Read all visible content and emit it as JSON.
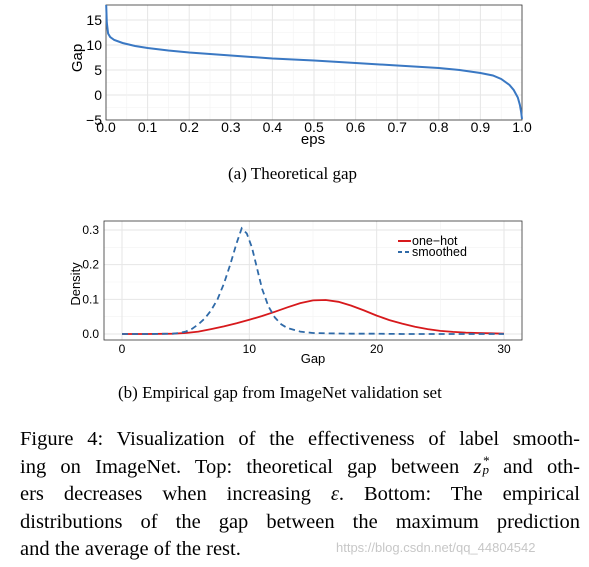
{
  "colors": {
    "top_line": "#3a78c3",
    "one_hot": "#d7191c",
    "smoothed": "#2f6aa8",
    "grid": "#e6e6e6",
    "panel_border": "#333333"
  },
  "chart_data": [
    {
      "type": "line",
      "title": "",
      "xlabel": "eps",
      "ylabel": "Gap",
      "xlim": [
        0.0,
        1.0
      ],
      "ylim": [
        -5,
        18
      ],
      "xticks": [
        "0.0",
        "0.1",
        "0.2",
        "0.3",
        "0.4",
        "0.5",
        "0.6",
        "0.7",
        "0.8",
        "0.9",
        "1.0"
      ],
      "yticks": [
        "−5",
        "0",
        "5",
        "10",
        "15"
      ],
      "grid": true,
      "series": [
        {
          "name": "",
          "x": [
            0.0005,
            0.002,
            0.005,
            0.01,
            0.02,
            0.04,
            0.07,
            0.1,
            0.15,
            0.2,
            0.3,
            0.4,
            0.5,
            0.6,
            0.7,
            0.8,
            0.85,
            0.9,
            0.93,
            0.95,
            0.97,
            0.98,
            0.99,
            0.995,
            0.998,
            1.0
          ],
          "y": [
            18.0,
            14.5,
            12.3,
            11.6,
            11.0,
            10.4,
            9.8,
            9.4,
            8.9,
            8.5,
            7.9,
            7.3,
            6.9,
            6.4,
            5.9,
            5.4,
            5.0,
            4.4,
            3.9,
            3.2,
            2.0,
            1.0,
            -0.5,
            -2.0,
            -3.5,
            -4.8
          ]
        }
      ]
    },
    {
      "type": "line",
      "title": "",
      "xlabel": "Gap",
      "ylabel": "Density",
      "xlim": [
        0,
        30
      ],
      "ylim": [
        0,
        0.3
      ],
      "xticks": [
        "0",
        "10",
        "20",
        "30"
      ],
      "yticks": [
        "0.0",
        "0.1",
        "0.2",
        "0.3"
      ],
      "grid": true,
      "legend": "top-right",
      "series": [
        {
          "name": "one−hot",
          "x": [
            0,
            2,
            4,
            5,
            6,
            7,
            8,
            9,
            10,
            11,
            12,
            13,
            14,
            15,
            16,
            17,
            18,
            19,
            20,
            21,
            22,
            23,
            24,
            25,
            26,
            27,
            28,
            29,
            30
          ],
          "y": [
            0.0,
            0.0,
            0.001,
            0.003,
            0.007,
            0.014,
            0.022,
            0.031,
            0.041,
            0.052,
            0.064,
            0.077,
            0.089,
            0.097,
            0.098,
            0.093,
            0.082,
            0.068,
            0.053,
            0.04,
            0.03,
            0.021,
            0.014,
            0.009,
            0.006,
            0.004,
            0.003,
            0.002,
            0.001
          ]
        },
        {
          "name": "smoothed",
          "x": [
            0,
            2,
            4,
            4.5,
            5,
            5.5,
            6,
            6.5,
            7,
            7.5,
            8,
            8.5,
            9,
            9.4,
            9.8,
            10.2,
            10.6,
            11,
            11.5,
            12,
            12.5,
            13,
            14,
            15,
            16,
            18,
            20,
            22,
            25,
            30
          ],
          "y": [
            0.0,
            0.0,
            0.001,
            0.003,
            0.007,
            0.015,
            0.028,
            0.045,
            0.068,
            0.1,
            0.145,
            0.2,
            0.262,
            0.305,
            0.29,
            0.25,
            0.19,
            0.13,
            0.08,
            0.048,
            0.028,
            0.017,
            0.007,
            0.003,
            0.002,
            0.001,
            0.001,
            0.0,
            0.0,
            0.0
          ]
        }
      ]
    }
  ],
  "captions": {
    "a": "(a) Theoretical gap",
    "b": "(b) Empirical gap from ImageNet validation set"
  },
  "figure_caption": {
    "line1": "Figure 4: Visualization of the effectiveness of label smooth-",
    "line2_a": "ing on ImageNet. Top: theoretical gap between ",
    "line2_math_base": "z",
    "line2_math_sup": "*",
    "line2_math_sub": "p",
    "line2_b": " and oth-",
    "line3_a": "ers decreases when increasing ",
    "line3_math": "ε",
    "line3_b": ". Bottom: The empirical",
    "line4": "distributions of the gap between the maximum prediction",
    "line5": "and the average of the rest."
  },
  "watermark": "https://blog.csdn.net/qq_44804542"
}
